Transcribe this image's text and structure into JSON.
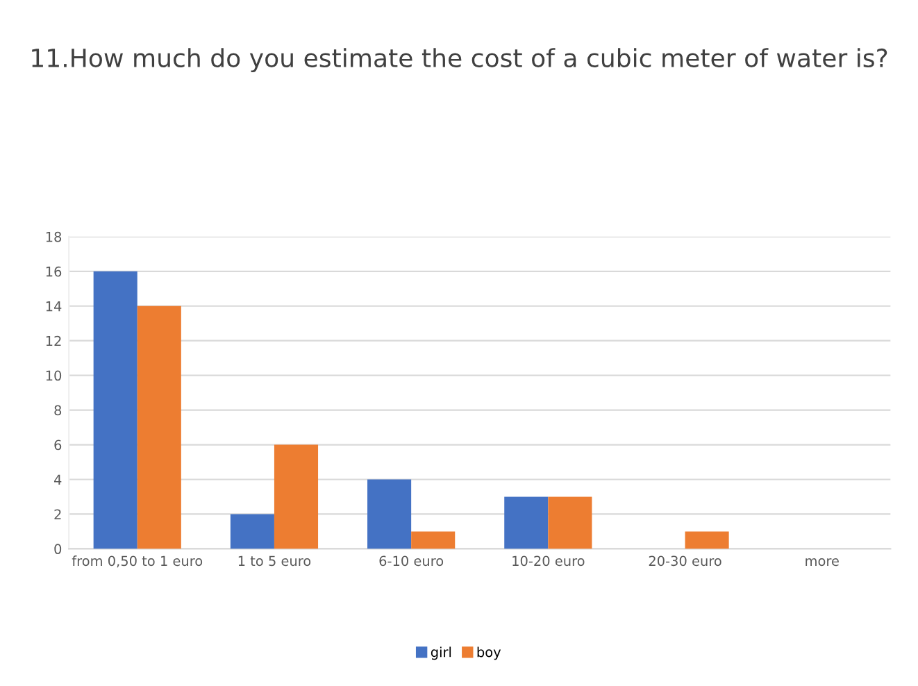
{
  "chart_data": {
    "type": "bar",
    "title": "11.How much do you estimate the cost of a cubic meter of water is?",
    "categories": [
      "from 0,50 to 1 euro",
      "1 to 5 euro",
      "6-10 euro",
      "10-20 euro",
      "20-30 euro",
      "more"
    ],
    "series": [
      {
        "name": "girl",
        "color": "#4472c4",
        "values": [
          16,
          2,
          4,
          3,
          0,
          0
        ]
      },
      {
        "name": "boy",
        "color": "#ed7d31",
        "values": [
          14,
          6,
          1,
          3,
          1,
          0
        ]
      }
    ],
    "ylim": [
      0,
      18
    ],
    "yticks": [
      0,
      2,
      4,
      6,
      8,
      10,
      12,
      14,
      16,
      18
    ],
    "grid": "y",
    "legend": "bottom"
  }
}
